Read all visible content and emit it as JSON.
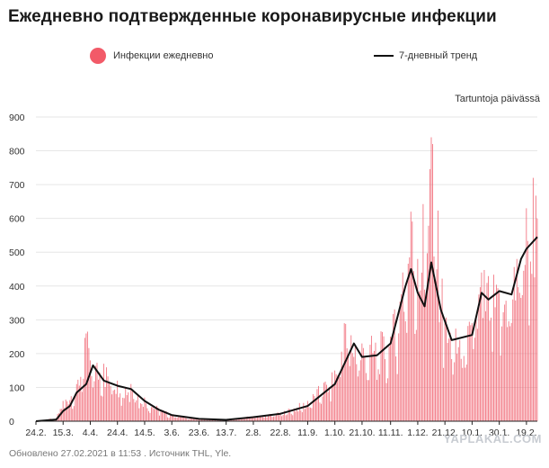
{
  "title": "Ежедневно подтвержденные коронавирусные инфекции",
  "legend": {
    "daily_label": "Инфекции ежедневно",
    "trend_label": "7-дневный тренд"
  },
  "unit_label": "Tartuntoja päivässä",
  "footer": "Обновлено 27.02.2021 в 11:53 . Источник THL, Yle.",
  "watermark": "YAPLAKAL.COM",
  "colors": {
    "bars": "#f0606e",
    "trend": "#111111",
    "dot": "#f25a68",
    "grid": "#e6e6e6",
    "axis": "#222222"
  },
  "chart_data": {
    "type": "bar",
    "title": "Ежедневно подтвержденные коронавирусные инфекции",
    "ylabel": "Tartuntoja päivässä",
    "ylim": [
      0,
      900
    ],
    "yticks": [
      0,
      100,
      200,
      300,
      400,
      500,
      600,
      700,
      800,
      900
    ],
    "x_range": [
      "24.2.2020",
      "27.2.2021"
    ],
    "xtick_labels": [
      "24.2.",
      "15.3.",
      "4.4.",
      "24.4.",
      "14.5.",
      "3.6.",
      "23.6.",
      "13.7.",
      "2.8.",
      "22.8.",
      "11.9.",
      "1.10.",
      "21.10.",
      "11.11.",
      "1.12.",
      "21.12.",
      "10.1.",
      "30.1.",
      "19.2."
    ],
    "grid": true,
    "legend_position": "top",
    "series": [
      {
        "name": "Инфекции ежедневно",
        "kind": "bar",
        "color": "#f0606e",
        "key_points": [
          {
            "date": "24.2.",
            "value": 0
          },
          {
            "date": "10.3.",
            "value": 10
          },
          {
            "date": "15.3.",
            "value": 60
          },
          {
            "date": "25.3.",
            "value": 110
          },
          {
            "date": "2.4.",
            "value": 265
          },
          {
            "date": "4.4.",
            "value": 180
          },
          {
            "date": "14.4.",
            "value": 170
          },
          {
            "date": "24.4.",
            "value": 120
          },
          {
            "date": "4.5.",
            "value": 110
          },
          {
            "date": "14.5.",
            "value": 70
          },
          {
            "date": "24.5.",
            "value": 40
          },
          {
            "date": "3.6.",
            "value": 20
          },
          {
            "date": "23.6.",
            "value": 8
          },
          {
            "date": "13.7.",
            "value": 5
          },
          {
            "date": "2.8.",
            "value": 15
          },
          {
            "date": "22.8.",
            "value": 25
          },
          {
            "date": "11.9.",
            "value": 60
          },
          {
            "date": "1.10.",
            "value": 150
          },
          {
            "date": "8.10.",
            "value": 290
          },
          {
            "date": "21.10.",
            "value": 230
          },
          {
            "date": "11.11.",
            "value": 250
          },
          {
            "date": "20.11.",
            "value": 440
          },
          {
            "date": "26.11.",
            "value": 620
          },
          {
            "date": "1.12.",
            "value": 480
          },
          {
            "date": "11.12.",
            "value": 840
          },
          {
            "date": "21.12.",
            "value": 300
          },
          {
            "date": "1.1.",
            "value": 240
          },
          {
            "date": "10.1.",
            "value": 290
          },
          {
            "date": "17.1.",
            "value": 440
          },
          {
            "date": "30.1.",
            "value": 380
          },
          {
            "date": "12.2.",
            "value": 480
          },
          {
            "date": "19.2.",
            "value": 630
          },
          {
            "date": "24.2.",
            "value": 720
          },
          {
            "date": "27.2.",
            "value": 600
          }
        ]
      },
      {
        "name": "7-дневный тренд",
        "kind": "line",
        "color": "#111111",
        "key_points": [
          {
            "date": "24.2.",
            "value": 0
          },
          {
            "date": "10.3.",
            "value": 5
          },
          {
            "date": "15.3.",
            "value": 30
          },
          {
            "date": "20.3.",
            "value": 45
          },
          {
            "date": "25.3.",
            "value": 85
          },
          {
            "date": "1.4.",
            "value": 110
          },
          {
            "date": "6.4.",
            "value": 165
          },
          {
            "date": "14.4.",
            "value": 120
          },
          {
            "date": "24.4.",
            "value": 105
          },
          {
            "date": "4.5.",
            "value": 95
          },
          {
            "date": "14.5.",
            "value": 60
          },
          {
            "date": "24.5.",
            "value": 35
          },
          {
            "date": "3.6.",
            "value": 18
          },
          {
            "date": "23.6.",
            "value": 7
          },
          {
            "date": "13.7.",
            "value": 4
          },
          {
            "date": "2.8.",
            "value": 12
          },
          {
            "date": "22.8.",
            "value": 22
          },
          {
            "date": "11.9.",
            "value": 45
          },
          {
            "date": "1.10.",
            "value": 110
          },
          {
            "date": "15.10.",
            "value": 230
          },
          {
            "date": "21.10.",
            "value": 190
          },
          {
            "date": "1.11.",
            "value": 195
          },
          {
            "date": "11.11.",
            "value": 230
          },
          {
            "date": "22.11.",
            "value": 400
          },
          {
            "date": "26.11.",
            "value": 450
          },
          {
            "date": "1.12.",
            "value": 380
          },
          {
            "date": "6.12.",
            "value": 340
          },
          {
            "date": "11.12.",
            "value": 470
          },
          {
            "date": "18.12.",
            "value": 330
          },
          {
            "date": "26.12.",
            "value": 240
          },
          {
            "date": "10.1.",
            "value": 255
          },
          {
            "date": "17.1.",
            "value": 380
          },
          {
            "date": "22.1.",
            "value": 360
          },
          {
            "date": "30.1.",
            "value": 385
          },
          {
            "date": "8.2.",
            "value": 375
          },
          {
            "date": "15.2.",
            "value": 480
          },
          {
            "date": "19.2.",
            "value": 510
          },
          {
            "date": "27.2.",
            "value": 545
          }
        ]
      }
    ]
  }
}
